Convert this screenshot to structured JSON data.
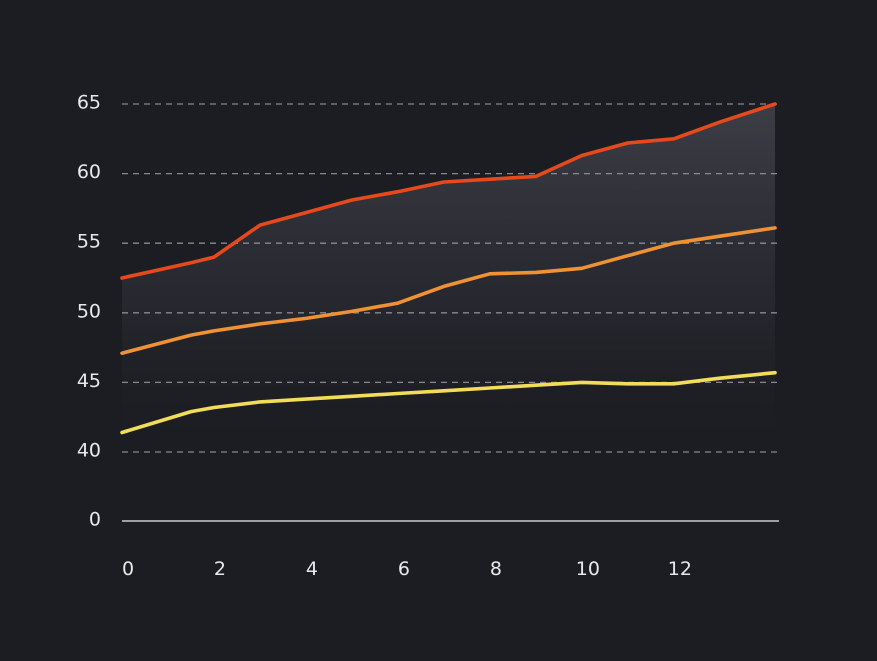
{
  "chart_data": {
    "type": "line",
    "title": "",
    "xlabel": "",
    "ylabel": "",
    "xlim": [
      0,
      14.2
    ],
    "x_ticks": [
      0,
      2,
      4,
      6,
      8,
      10,
      12
    ],
    "y_ticks": [
      0,
      40,
      45,
      50,
      55,
      60,
      65
    ],
    "y_axis_break": "between 0 and 40",
    "grid": "horizontal dashed",
    "legend": "none",
    "background": "#1c1d22",
    "x": [
      0,
      1.5,
      2,
      3,
      4,
      5,
      6,
      7,
      8,
      9,
      10,
      11,
      12,
      13,
      14.2
    ],
    "series": [
      {
        "color": "#e5491c",
        "values": [
          52.5,
          53.6,
          54.0,
          56.3,
          57.2,
          58.1,
          58.7,
          59.4,
          59.6,
          59.8,
          61.3,
          62.2,
          62.5,
          63.7,
          65.0
        ]
      },
      {
        "color": "#f09232",
        "values": [
          47.1,
          48.4,
          48.7,
          49.2,
          49.6,
          50.1,
          50.7,
          51.9,
          52.8,
          52.9,
          53.2,
          54.1,
          55.0,
          55.5,
          56.1
        ]
      },
      {
        "color": "#f3dc5a",
        "values": [
          41.4,
          42.9,
          43.2,
          43.6,
          43.8,
          44.0,
          44.2,
          44.4,
          44.6,
          44.8,
          45.0,
          44.9,
          44.9,
          45.3,
          45.7
        ]
      }
    ]
  }
}
